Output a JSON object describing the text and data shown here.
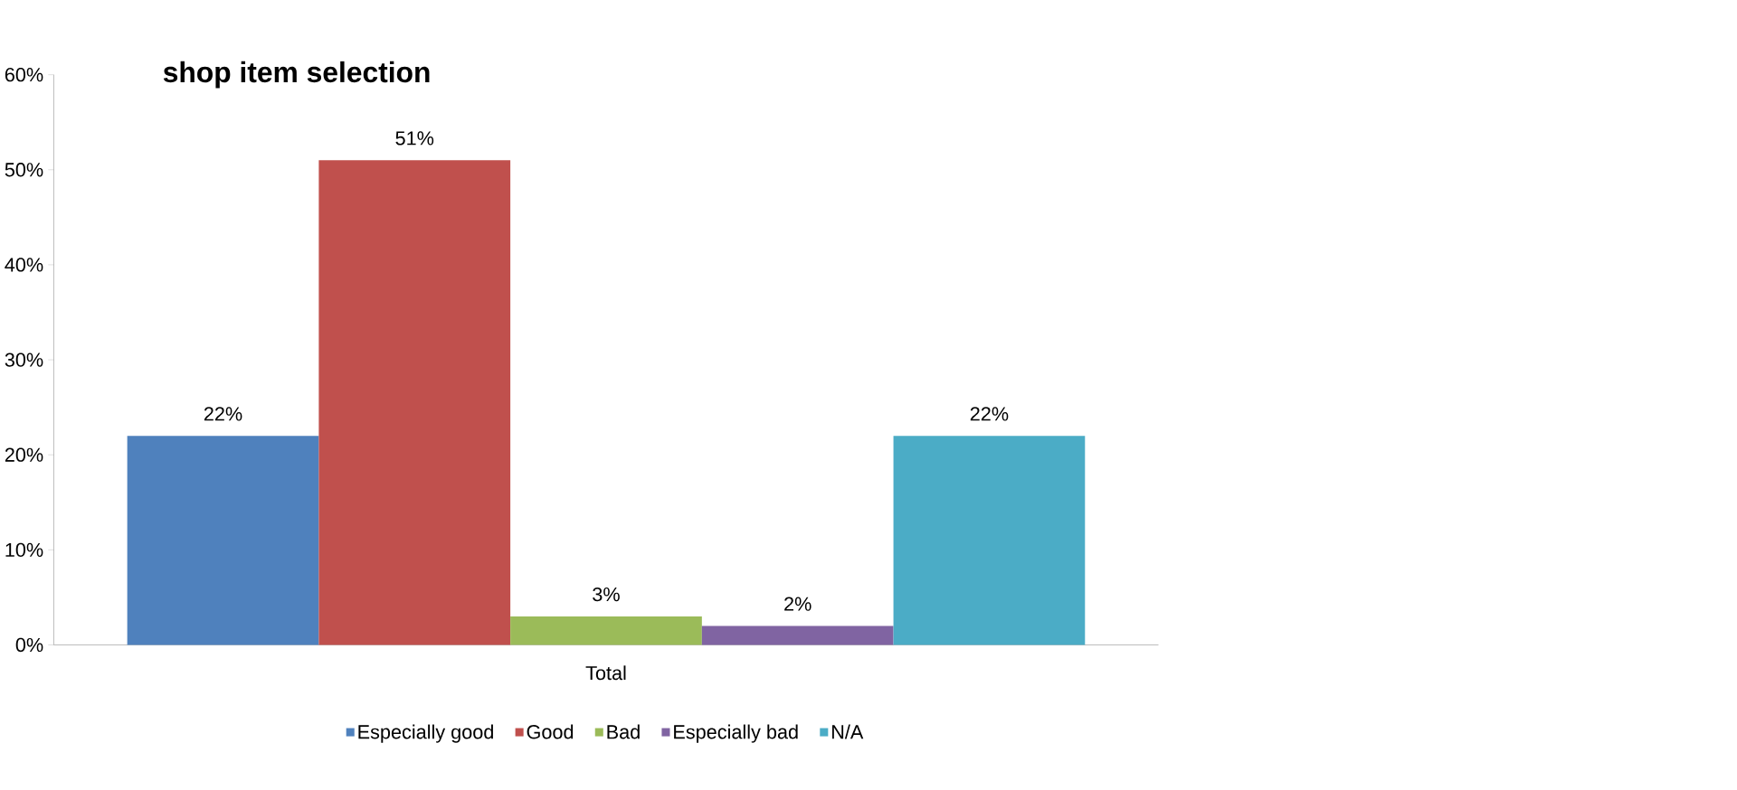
{
  "chart_data": {
    "type": "bar",
    "title": "shop item selection",
    "categories": [
      "Total"
    ],
    "series": [
      {
        "name": "Especially good",
        "color": "#4f81bd",
        "values": [
          22
        ],
        "value_labels": [
          "22%"
        ]
      },
      {
        "name": "Good",
        "color": "#c0504d",
        "values": [
          51
        ],
        "value_labels": [
          "51%"
        ]
      },
      {
        "name": "Bad",
        "color": "#9bbb59",
        "values": [
          3
        ],
        "value_labels": [
          "3%"
        ]
      },
      {
        "name": "Especially bad",
        "color": "#8064a2",
        "values": [
          2
        ],
        "value_labels": [
          "2%"
        ]
      },
      {
        "name": "N/A",
        "color": "#4bacc6",
        "values": [
          22
        ],
        "value_labels": [
          "22%"
        ]
      }
    ],
    "ylim": [
      0,
      60
    ],
    "yticks": [
      {
        "value": 0,
        "label": "0%"
      },
      {
        "value": 10,
        "label": "10%"
      },
      {
        "value": 20,
        "label": "20%"
      },
      {
        "value": 30,
        "label": "30%"
      },
      {
        "value": 40,
        "label": "40%"
      },
      {
        "value": 50,
        "label": "50%"
      },
      {
        "value": 60,
        "label": "60%"
      }
    ],
    "grid": false,
    "legend": "bottom"
  }
}
